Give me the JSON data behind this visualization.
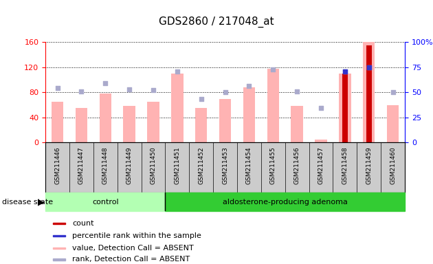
{
  "title": "GDS2860 / 217048_at",
  "samples": [
    "GSM211446",
    "GSM211447",
    "GSM211448",
    "GSM211449",
    "GSM211450",
    "GSM211451",
    "GSM211452",
    "GSM211453",
    "GSM211454",
    "GSM211455",
    "GSM211456",
    "GSM211457",
    "GSM211458",
    "GSM211459",
    "GSM211460"
  ],
  "n_control": 5,
  "n_adenoma": 10,
  "values_absent": [
    65,
    55,
    78,
    58,
    65,
    110,
    55,
    70,
    88,
    118,
    58,
    5,
    110,
    160,
    60
  ],
  "rank_absent": [
    87,
    82,
    95,
    85,
    84,
    113,
    70,
    80,
    90,
    117,
    82,
    55,
    113,
    120,
    80
  ],
  "count_values": [
    0,
    0,
    0,
    0,
    0,
    0,
    0,
    0,
    0,
    0,
    0,
    0,
    110,
    155,
    0
  ],
  "percentile_rank": [
    0,
    0,
    0,
    0,
    0,
    0,
    0,
    0,
    0,
    0,
    0,
    0,
    113,
    120,
    0
  ],
  "left_ylim": [
    0,
    160
  ],
  "right_ylim": [
    0,
    100
  ],
  "left_yticks": [
    0,
    40,
    80,
    120,
    160
  ],
  "right_yticks": [
    0,
    25,
    50,
    75,
    100
  ],
  "right_yticklabels": [
    "0",
    "25",
    "50",
    "75",
    "100%"
  ],
  "bar_color_count": "#cc0000",
  "bar_color_value_absent": "#ffb3b3",
  "dot_color_rank_absent": "#aaaacc",
  "dot_color_percentile": "#3333cc",
  "control_group_color": "#b3ffb3",
  "adenoma_group_color": "#33cc33",
  "xtick_bg_color": "#cccccc",
  "legend_items": [
    {
      "color": "#cc0000",
      "label": "count"
    },
    {
      "color": "#3333cc",
      "label": "percentile rank within the sample"
    },
    {
      "color": "#ffb3b3",
      "label": "value, Detection Call = ABSENT"
    },
    {
      "color": "#aaaacc",
      "label": "rank, Detection Call = ABSENT"
    }
  ]
}
